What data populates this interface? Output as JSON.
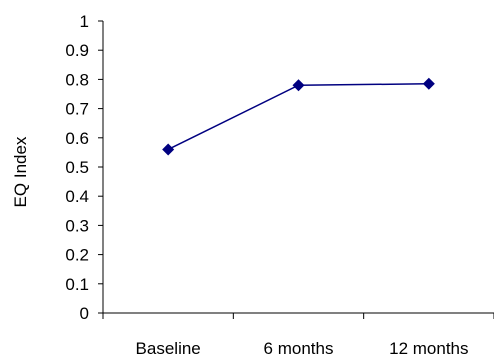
{
  "chart_data": {
    "type": "line",
    "categories": [
      "Baseline",
      "6 months",
      "12 months"
    ],
    "series": [
      {
        "values": [
          0.56,
          0.78,
          0.785
        ]
      }
    ],
    "title": "",
    "xlabel": "",
    "ylabel": "EQ Index",
    "ylim": [
      0,
      1
    ],
    "yticks": [
      0,
      0.1,
      0.2,
      0.3,
      0.4,
      0.5,
      0.6,
      0.7,
      0.8,
      0.9,
      1
    ],
    "ytick_labels": [
      "0",
      "0.1",
      "0.2",
      "0.3",
      "0.4",
      "0.5",
      "0.6",
      "0.7",
      "0.8",
      "0.9",
      "1"
    ],
    "grid": false,
    "legend": "none",
    "colors": {
      "line": "#000080",
      "marker": "#000080",
      "axis": "#000000"
    },
    "marker": "diamond"
  }
}
